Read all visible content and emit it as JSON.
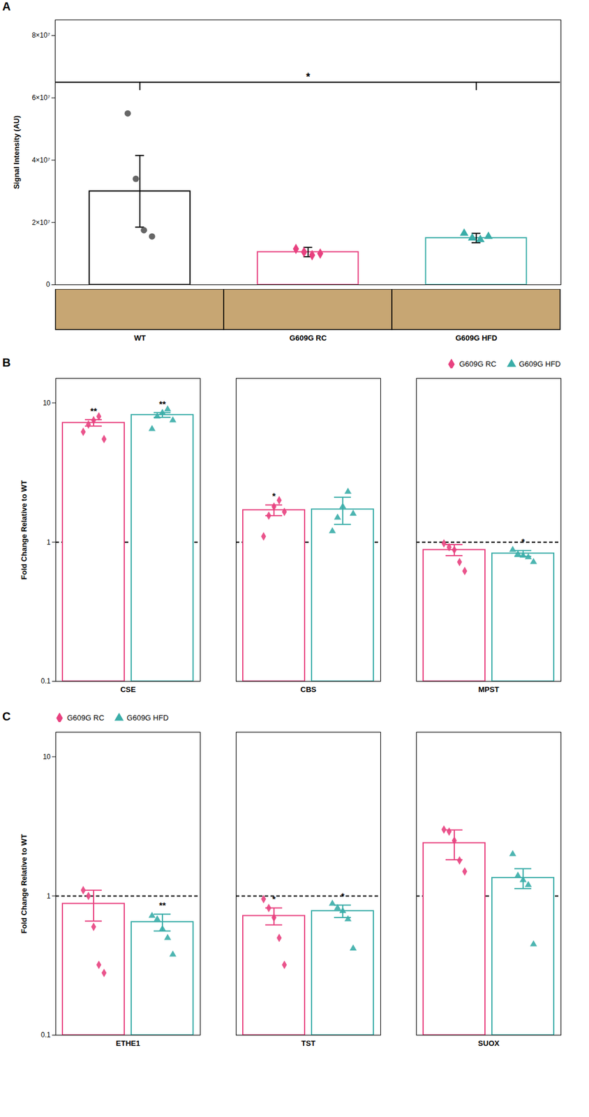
{
  "chart_data": [
    {
      "type": "bar",
      "panel_label": "A",
      "ylabel": "Signal Intensity (AU)",
      "categories": [
        "WT",
        "G609G RC",
        "G609G HFD"
      ],
      "values": [
        30000000,
        10500000,
        15000000
      ],
      "errors": [
        11500000,
        1500000,
        1500000
      ],
      "colors": [
        "black",
        "#E8417F",
        "#3AADA8"
      ],
      "dots": [
        {
          "color": "#666666",
          "marker": "circle",
          "values": [
            55000000,
            34000000,
            17500000,
            15500000
          ]
        },
        {
          "color": "#E8417F",
          "marker": "diamond",
          "values": [
            11500000,
            10500000,
            9500000,
            10000000
          ]
        },
        {
          "color": "#3AADA8",
          "marker": "triangle",
          "values": [
            16500000,
            15000000,
            14500000,
            15500000
          ]
        }
      ],
      "annotations": [
        {
          "text": "*",
          "x1": "WT",
          "x2": "G609G HFD",
          "y": 65000000
        }
      ],
      "ylim": [
        0,
        85000000
      ],
      "yticks": [
        0,
        {
          "value": 20000000,
          "label": "2×10⁷"
        },
        {
          "value": 40000000,
          "label": "4×10⁷"
        },
        {
          "value": 60000000,
          "label": "6×10⁷"
        },
        {
          "value": 80000000,
          "label": "8×10⁷"
        }
      ]
    },
    {
      "type": "bar",
      "panel_label": "B",
      "ylabel": "Fold Change Relative to WT",
      "categories": [
        "CSE",
        "CBS",
        "MPST"
      ],
      "log": "y",
      "ylim": [
        0.1,
        15
      ],
      "yticks": [
        0.1,
        1,
        10
      ],
      "legend": "upper right",
      "reference_line": {
        "y": 1,
        "line_style": "dashed"
      },
      "series": [
        {
          "name": "G609G RC",
          "color": "#E8417F",
          "marker": "diamond",
          "values": [
            7.2,
            1.7,
            0.88
          ],
          "errors": [
            0.38,
            0.15,
            0.08
          ],
          "dots": [
            [
              6.2,
              7.0,
              7.5,
              8.0,
              5.5
            ],
            [
              1.1,
              1.55,
              1.8,
              2.0,
              1.65
            ],
            [
              0.98,
              0.92,
              0.88,
              0.72,
              0.62
            ]
          ],
          "sig_labels": [
            "**",
            "*",
            null
          ]
        },
        {
          "name": "G609G HFD",
          "color": "#3AADA8",
          "marker": "triangle",
          "values": [
            8.2,
            1.72,
            0.83
          ],
          "errors": [
            0.32,
            0.38,
            0.04
          ],
          "dots": [
            [
              6.5,
              8.0,
              8.5,
              9.0,
              7.5
            ],
            [
              1.2,
              1.5,
              1.8,
              2.3,
              1.6
            ],
            [
              0.88,
              0.82,
              0.8,
              0.78,
              0.72
            ]
          ],
          "sig_labels": [
            "**",
            null,
            "*"
          ]
        }
      ]
    },
    {
      "type": "bar",
      "panel_label": "C",
      "ylabel": "Fold Change Relative to WT",
      "categories": [
        "ETHE1",
        "TST",
        "SUOX"
      ],
      "log": "y",
      "ylim": [
        0.1,
        15
      ],
      "yticks": [
        0.1,
        1,
        10
      ],
      "legend": "upper left",
      "reference_line": {
        "y": 1,
        "line_style": "dashed"
      },
      "series": [
        {
          "name": "G609G RC",
          "color": "#E8417F",
          "marker": "diamond",
          "values": [
            0.88,
            0.72,
            2.4
          ],
          "errors": [
            0.22,
            0.1,
            0.58
          ],
          "dots": [
            [
              1.1,
              1.0,
              0.6,
              0.32,
              0.28
            ],
            [
              0.95,
              0.82,
              0.7,
              0.5,
              0.32
            ],
            [
              3.0,
              2.9,
              2.5,
              1.8,
              1.5
            ]
          ],
          "sig_labels": [
            null,
            "*",
            null
          ]
        },
        {
          "name": "G609G HFD",
          "color": "#3AADA8",
          "marker": "triangle",
          "values": [
            0.65,
            0.78,
            1.35
          ],
          "errors": [
            0.09,
            0.08,
            0.22
          ],
          "dots": [
            [
              0.72,
              0.68,
              0.58,
              0.5,
              0.38
            ],
            [
              0.88,
              0.82,
              0.78,
              0.68,
              0.42
            ],
            [
              2.0,
              1.4,
              1.3,
              1.2,
              0.45
            ]
          ],
          "sig_labels": [
            "**",
            "*",
            null
          ]
        }
      ]
    }
  ]
}
